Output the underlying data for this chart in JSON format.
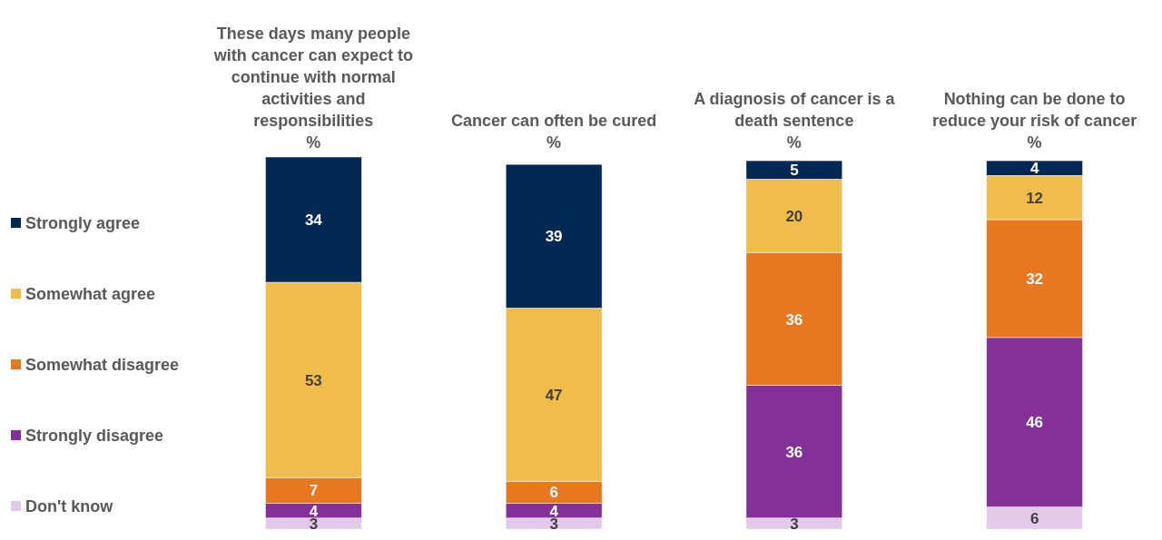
{
  "chart_data": {
    "type": "bar",
    "stacked": true,
    "data_labels": true,
    "legend": "left",
    "categories": [
      "These days many people with cancer can expect to continue with normal activities and responsibilities\n%",
      "Cancer can often be cured\n%",
      "A diagnosis of cancer is a death sentence\n%",
      "Nothing can be done to reduce your risk of cancer\n%"
    ],
    "series": [
      {
        "name": "Don't know",
        "color": "#e3c8ea",
        "values": [
          3,
          3,
          3,
          6
        ]
      },
      {
        "name": "Strongly disagree",
        "color": "#833199",
        "values": [
          4,
          4,
          36,
          46
        ]
      },
      {
        "name": "Somewhat disagree",
        "color": "#e87722",
        "values": [
          7,
          6,
          36,
          32
        ]
      },
      {
        "name": "Somewhat agree",
        "color": "#f0bd4a",
        "values": [
          53,
          47,
          20,
          12
        ]
      },
      {
        "name": "Strongly agree",
        "color": "#002855",
        "values": [
          34,
          39,
          5,
          4
        ]
      }
    ]
  }
}
